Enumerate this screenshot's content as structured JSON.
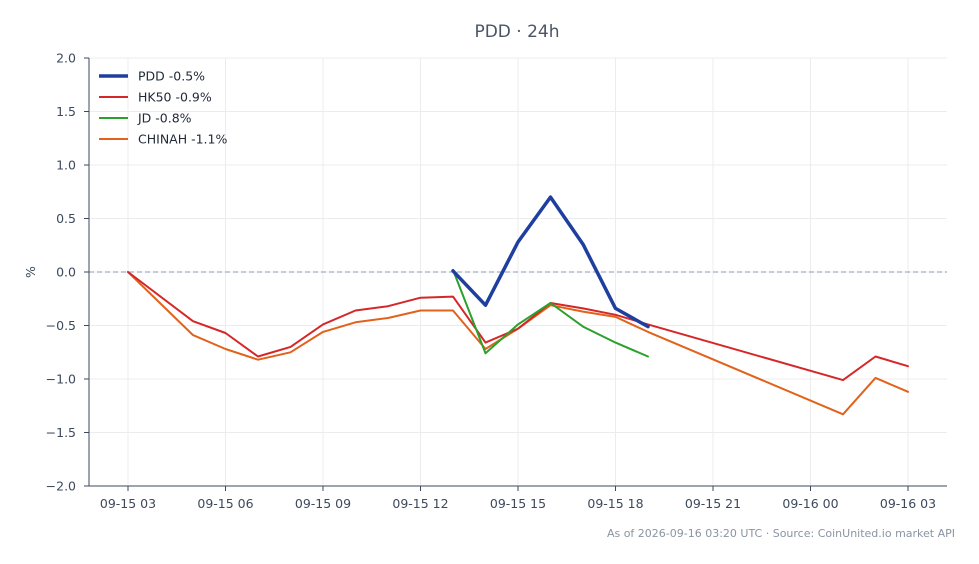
{
  "chart_data": {
    "type": "line",
    "title": "PDD · 24h",
    "ylabel": "%",
    "xlabel": "",
    "ylim": [
      -2.0,
      2.0
    ],
    "y_ticks": [
      -2.0,
      -1.5,
      -1.0,
      -0.5,
      0.0,
      0.5,
      1.0,
      1.5,
      2.0
    ],
    "x_tick_labels": [
      "09-15 03",
      "09-15 06",
      "09-15 09",
      "09-15 12",
      "09-15 15",
      "09-15 18",
      "09-15 21",
      "09-16 00",
      "09-16 03"
    ],
    "x_unit": "hours",
    "xlim": [
      -1.2,
      25.2
    ],
    "reference_line": 0.0,
    "grid": true,
    "legend_position": "top-left",
    "series": [
      {
        "name": "PDD -0.5%",
        "color": "#1f3fa0",
        "width": 3.5,
        "x": [
          10,
          11,
          12,
          13,
          14,
          15,
          16
        ],
        "y": [
          0.01,
          -0.31,
          0.28,
          0.7,
          0.26,
          -0.34,
          -0.51
        ]
      },
      {
        "name": "HK50 -0.9%",
        "color": "#d62728",
        "width": 2,
        "x": [
          0,
          2,
          3,
          4,
          5,
          6,
          7,
          8,
          9,
          10,
          11,
          12,
          13,
          14,
          15,
          16,
          22,
          23,
          24
        ],
        "y": [
          0.0,
          -0.46,
          -0.57,
          -0.79,
          -0.7,
          -0.49,
          -0.36,
          -0.32,
          -0.24,
          -0.23,
          -0.66,
          -0.53,
          -0.29,
          -0.34,
          -0.4,
          -0.49,
          -1.01,
          -0.79,
          -0.88
        ]
      },
      {
        "name": "JD -0.8%",
        "color": "#2ca02c",
        "width": 2,
        "x": [
          10,
          11,
          12,
          13,
          14,
          15,
          16
        ],
        "y": [
          0.02,
          -0.76,
          -0.49,
          -0.29,
          -0.51,
          -0.66,
          -0.79
        ]
      },
      {
        "name": "CHINAH -1.1%",
        "color": "#e2621b",
        "width": 2,
        "x": [
          0,
          2,
          3,
          4,
          5,
          6,
          7,
          8,
          9,
          10,
          11,
          12,
          13,
          14,
          15,
          16,
          22,
          23,
          24
        ],
        "y": [
          0.0,
          -0.59,
          -0.72,
          -0.82,
          -0.75,
          -0.56,
          -0.47,
          -0.43,
          -0.36,
          -0.36,
          -0.72,
          -0.53,
          -0.31,
          -0.37,
          -0.42,
          -0.56,
          -1.33,
          -0.99,
          -1.12
        ]
      }
    ],
    "footer": "As of 2026-09-16 03:20 UTC · Source: CoinUnited.io market API"
  }
}
